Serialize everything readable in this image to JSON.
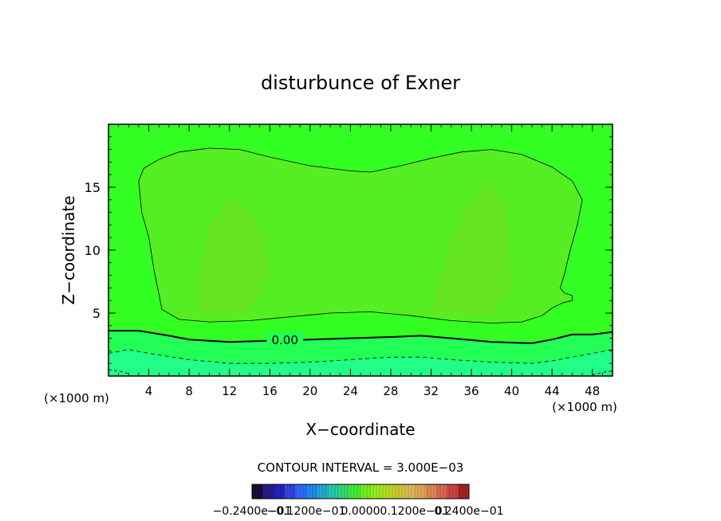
{
  "chart_data": {
    "type": "heatmap",
    "title": "disturbunce of Exner",
    "xlabel": "X−coordinate",
    "ylabel": "Z−coordinate",
    "x_unit": "(×1000 m)",
    "y_unit": "(×1000 m)",
    "xlim": [
      0,
      50
    ],
    "ylim": [
      0,
      20
    ],
    "x_ticks": [
      4,
      8,
      12,
      16,
      20,
      24,
      28,
      32,
      36,
      40,
      44,
      48
    ],
    "y_ticks": [
      5,
      10,
      15
    ],
    "contour_interval_text": "CONTOUR INTERVAL = 3.000E−03",
    "contour_label": "0.00",
    "zero_contour": [
      [
        0,
        3.6
      ],
      [
        3,
        3.6
      ],
      [
        6,
        3.2
      ],
      [
        8,
        2.9
      ],
      [
        12,
        2.7
      ],
      [
        16,
        2.8
      ],
      [
        20,
        2.9
      ],
      [
        24,
        3.0
      ],
      [
        28,
        3.1
      ],
      [
        31,
        3.2
      ],
      [
        34,
        3.0
      ],
      [
        38,
        2.7
      ],
      [
        42,
        2.6
      ],
      [
        44,
        2.9
      ],
      [
        46,
        3.3
      ],
      [
        48,
        3.3
      ],
      [
        50,
        3.5
      ]
    ],
    "dashed_contour": [
      [
        0,
        1.8
      ],
      [
        2,
        2.1
      ],
      [
        4,
        1.8
      ],
      [
        8,
        1.3
      ],
      [
        12,
        1.0
      ],
      [
        16,
        1.0
      ],
      [
        20,
        1.1
      ],
      [
        24,
        1.3
      ],
      [
        28,
        1.5
      ],
      [
        31,
        1.5
      ],
      [
        34,
        1.3
      ],
      [
        38,
        1.1
      ],
      [
        42,
        1.0
      ],
      [
        44,
        1.2
      ],
      [
        46,
        1.5
      ],
      [
        48,
        1.8
      ],
      [
        50,
        2.1
      ]
    ],
    "inner_contour": [
      [
        3.0,
        15.5
      ],
      [
        3.5,
        16.5
      ],
      [
        5,
        17.2
      ],
      [
        7,
        17.8
      ],
      [
        10,
        18.1
      ],
      [
        13,
        18.0
      ],
      [
        16,
        17.4
      ],
      [
        20,
        16.7
      ],
      [
        24,
        16.3
      ],
      [
        26,
        16.2
      ],
      [
        29,
        16.7
      ],
      [
        32,
        17.3
      ],
      [
        35,
        17.8
      ],
      [
        38,
        18.0
      ],
      [
        41,
        17.6
      ],
      [
        44,
        16.6
      ],
      [
        46,
        15.5
      ],
      [
        47,
        14.0
      ],
      [
        46.5,
        12.0
      ],
      [
        45.8,
        10.0
      ],
      [
        45.2,
        8.0
      ],
      [
        44.8,
        7.0
      ],
      [
        45.2,
        6.6
      ],
      [
        46,
        6.4
      ],
      [
        46,
        6.0
      ],
      [
        45,
        5.8
      ],
      [
        44,
        5.4
      ],
      [
        43,
        4.8
      ],
      [
        41,
        4.3
      ],
      [
        38,
        4.2
      ],
      [
        34,
        4.4
      ],
      [
        30,
        4.8
      ],
      [
        26,
        5.1
      ],
      [
        22,
        5.0
      ],
      [
        18,
        4.7
      ],
      [
        14,
        4.4
      ],
      [
        10,
        4.3
      ],
      [
        7,
        4.5
      ],
      [
        5.3,
        5.3
      ],
      [
        5,
        6.5
      ],
      [
        4.5,
        8.5
      ],
      [
        4,
        11
      ],
      [
        3.3,
        13
      ],
      [
        3.0,
        15.5
      ]
    ],
    "colorbar": {
      "ticks": [
        "−0.2400",
        "−0.1200",
        "0.0000",
        "0.1200",
        "0.2400"
      ],
      "tick_suffixes": [
        "e−01",
        "e−01",
        "",
        "e−01",
        "e−01"
      ],
      "colors": [
        "#1a0a3a",
        "#2a1a8a",
        "#2222c0",
        "#3344e0",
        "#3366ff",
        "#2288ee",
        "#22aacc",
        "#22ccaa",
        "#33dd66",
        "#44ee33",
        "#77ee22",
        "#99ee22",
        "#bbdd22",
        "#ccc833",
        "#ddbb55",
        "#ddaa55",
        "#dd8855",
        "#dd6655",
        "#cc4444",
        "#aa2222"
      ]
    },
    "field_colors": {
      "bottom": "#22ff88",
      "lower": "#22ff55",
      "main": "#33ff22",
      "inner": "#55ee22",
      "core": "#66e622"
    }
  }
}
